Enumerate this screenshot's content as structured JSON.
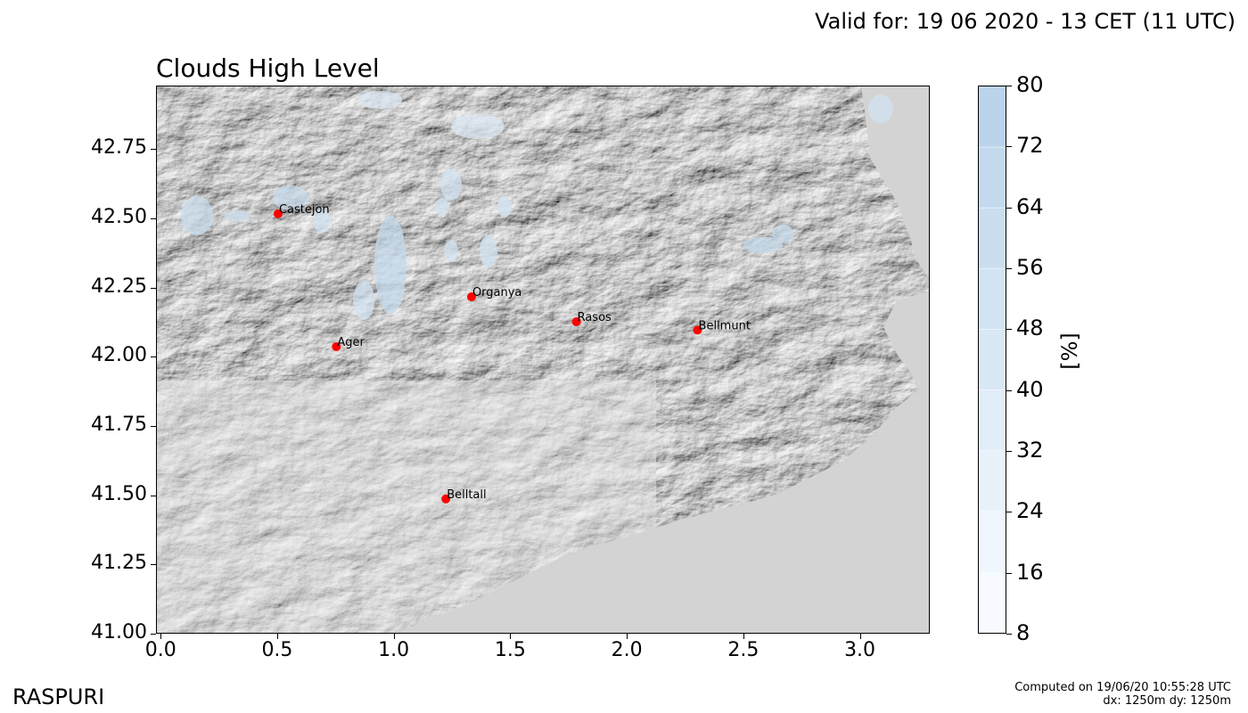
{
  "header": {
    "valid_text": "Valid for: 19 06 2020 - 13 CET (11 UTC)",
    "title": "Clouds High Level"
  },
  "map": {
    "x_ticks": [
      "0.0",
      "0.5",
      "1.0",
      "1.5",
      "2.0",
      "2.5",
      "3.0"
    ],
    "x_tick_values": [
      0.0,
      0.5,
      1.0,
      1.5,
      2.0,
      2.5,
      3.0
    ],
    "y_ticks": [
      "42.75",
      "42.50",
      "42.25",
      "42.00",
      "41.75",
      "41.50",
      "41.25",
      "41.00"
    ],
    "y_tick_values": [
      42.75,
      42.5,
      42.25,
      42.0,
      41.75,
      41.5,
      41.25,
      41.0
    ],
    "x_range": [
      -0.02,
      3.3
    ],
    "y_range": [
      41.0,
      42.98
    ],
    "cities": [
      {
        "name": "Castejon",
        "x": 0.5,
        "y": 42.52
      },
      {
        "name": "Organya",
        "x": 1.33,
        "y": 42.22
      },
      {
        "name": "Rasos",
        "x": 1.78,
        "y": 42.13
      },
      {
        "name": "Bellmunt",
        "x": 2.3,
        "y": 42.1
      },
      {
        "name": "Ager",
        "x": 0.75,
        "y": 42.04
      },
      {
        "name": "Belltall",
        "x": 1.22,
        "y": 41.49
      }
    ],
    "marker_color": "#ff0000",
    "sea_color": "#d3d3d3"
  },
  "colorbar": {
    "ticks": [
      "80",
      "72",
      "64",
      "56",
      "48",
      "40",
      "32",
      "24",
      "16",
      "8"
    ],
    "tick_values": [
      80,
      72,
      64,
      56,
      48,
      40,
      32,
      24,
      16,
      8
    ],
    "label": "[%]",
    "range": [
      8,
      80
    ],
    "colors": [
      "#f7fbff",
      "#f0f6fd",
      "#e9f2fb",
      "#e1edf8",
      "#d9e8f5",
      "#d2e3f3",
      "#cadef0",
      "#c2d9ee",
      "#bbd4eb"
    ]
  },
  "footer": {
    "brand": "RASPURI",
    "computed_line1": "Computed on 19/06/20 10:55:28 UTC",
    "computed_line2": "dx: 1250m dy: 1250m"
  }
}
